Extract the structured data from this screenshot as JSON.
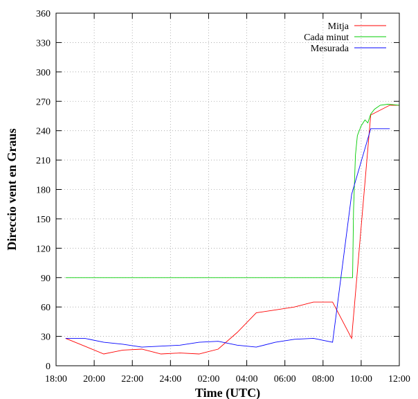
{
  "chart_data": {
    "type": "line",
    "title": "",
    "xlabel": "Time (UTC)",
    "ylabel": "Direccio vent en Graus",
    "xlim": [
      18,
      36
    ],
    "ylim": [
      0,
      360
    ],
    "grid": true,
    "legend_position": "top-right",
    "x_ticks": [
      {
        "x": 18,
        "label": "18:00"
      },
      {
        "x": 20,
        "label": "20:00"
      },
      {
        "x": 22,
        "label": "22:00"
      },
      {
        "x": 24,
        "label": "24:00"
      },
      {
        "x": 26,
        "label": "02:00"
      },
      {
        "x": 28,
        "label": "04:00"
      },
      {
        "x": 30,
        "label": "06:00"
      },
      {
        "x": 32,
        "label": "08:00"
      },
      {
        "x": 34,
        "label": "10:00"
      },
      {
        "x": 36,
        "label": "12:00"
      }
    ],
    "y_ticks": [
      0,
      30,
      60,
      90,
      120,
      150,
      180,
      210,
      240,
      270,
      300,
      330,
      360
    ],
    "series": [
      {
        "name": "Mitja",
        "color": "#ff0000",
        "points": [
          [
            18.5,
            28
          ],
          [
            20.5,
            12
          ],
          [
            21.5,
            16
          ],
          [
            22.5,
            17
          ],
          [
            23.5,
            12
          ],
          [
            24.5,
            13
          ],
          [
            25.5,
            12
          ],
          [
            26.5,
            17
          ],
          [
            27.5,
            34
          ],
          [
            28.5,
            54
          ],
          [
            29.5,
            57
          ],
          [
            30.5,
            60
          ],
          [
            31.5,
            65
          ],
          [
            32.5,
            65
          ],
          [
            33.5,
            28
          ],
          [
            34.5,
            256
          ],
          [
            35.5,
            266
          ],
          [
            36,
            266
          ]
        ]
      },
      {
        "name": "Cada minut",
        "color": "#00cc00",
        "points": [
          [
            18.5,
            90
          ],
          [
            33.5,
            90
          ],
          [
            33.55,
            90
          ],
          [
            33.6,
            160
          ],
          [
            33.7,
            215
          ],
          [
            33.8,
            235
          ],
          [
            34.0,
            245
          ],
          [
            34.2,
            251
          ],
          [
            34.35,
            248
          ],
          [
            34.5,
            257
          ],
          [
            34.7,
            262
          ],
          [
            35.0,
            266
          ],
          [
            35.4,
            267
          ],
          [
            36,
            266
          ]
        ]
      },
      {
        "name": "Mesurada",
        "color": "#0000ff",
        "points": [
          [
            18.5,
            28
          ],
          [
            19.5,
            28
          ],
          [
            20.5,
            24
          ],
          [
            21.5,
            22
          ],
          [
            22.5,
            19
          ],
          [
            23.5,
            20
          ],
          [
            24.5,
            21
          ],
          [
            25.5,
            24
          ],
          [
            26.5,
            25
          ],
          [
            27.5,
            21
          ],
          [
            28.5,
            19
          ],
          [
            29.5,
            24
          ],
          [
            30.5,
            27
          ],
          [
            31.5,
            28
          ],
          [
            32.5,
            24
          ],
          [
            33.5,
            175
          ],
          [
            34.5,
            242
          ],
          [
            35.5,
            242
          ]
        ]
      }
    ]
  }
}
